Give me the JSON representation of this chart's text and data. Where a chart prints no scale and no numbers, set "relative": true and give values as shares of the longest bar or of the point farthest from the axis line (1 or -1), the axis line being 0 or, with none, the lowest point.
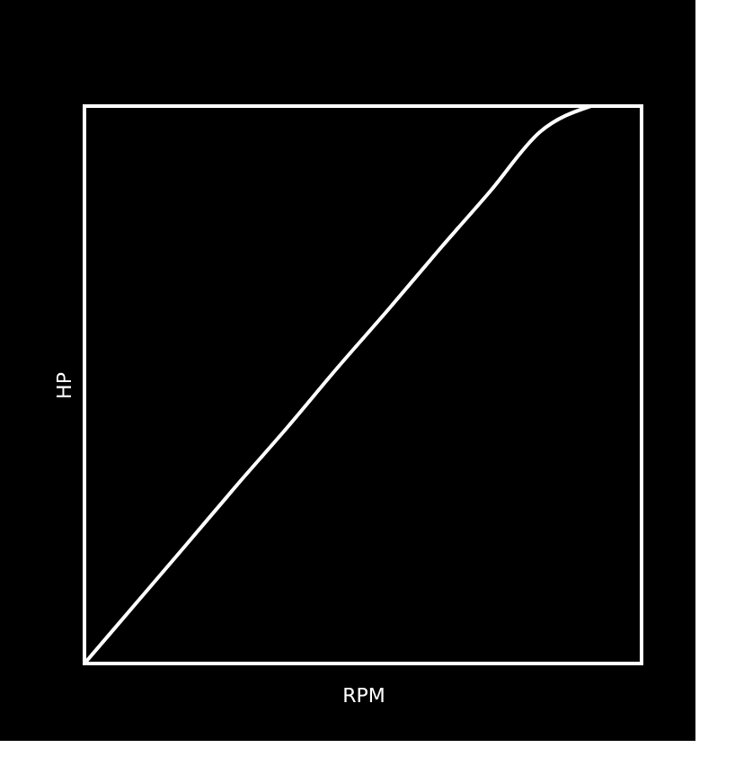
{
  "chart_data": {
    "type": "line",
    "relative": true,
    "xlabel": "RPM",
    "ylabel": "HP",
    "categories": [
      null,
      null,
      null,
      null,
      null,
      null,
      null,
      null,
      null,
      null,
      null,
      null
    ],
    "series": [
      {
        "color": "#ffffff",
        "values": [
          0,
          0.106,
          0.212,
          0.319,
          0.423,
          0.531,
          0.635,
          0.742,
          0.846,
          0.954,
          1,
          null
        ]
      }
    ],
    "tick_labels": false,
    "grid": false,
    "marker": "none",
    "line_style": "solid"
  }
}
